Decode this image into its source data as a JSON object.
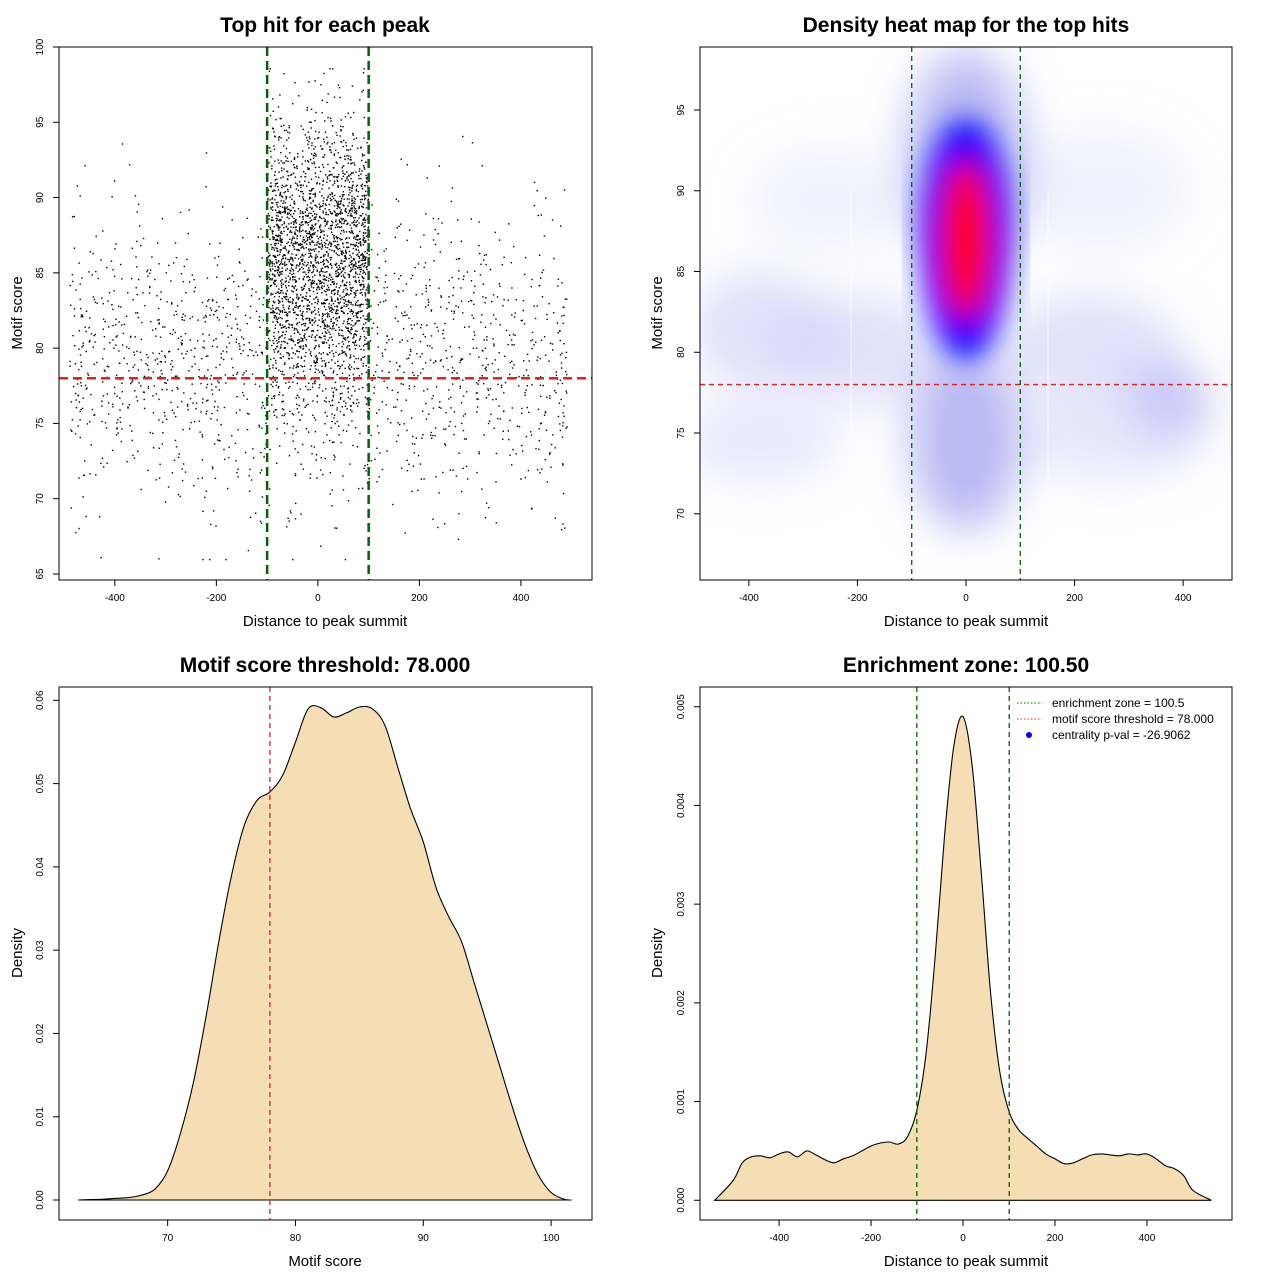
{
  "chart_data": [
    {
      "type": "scatter",
      "title": "Top hit for each peak",
      "xlabel": "Distance to peak summit",
      "ylabel": "Motif score",
      "xlim": [
        -510,
        540
      ],
      "ylim": [
        64.6,
        100
      ],
      "x_ticks": [
        -400,
        -200,
        0,
        200,
        400
      ],
      "y_ticks": [
        65,
        70,
        75,
        80,
        85,
        90,
        95,
        100
      ],
      "x_tick_labels": [
        "-400",
        "-200",
        "0",
        "200",
        "400"
      ],
      "y_tick_labels": [
        "65",
        "70",
        "75",
        "80",
        "85",
        "90",
        "95",
        "100"
      ],
      "vlines": [
        -100,
        100
      ],
      "hline": 78,
      "vline_color": "#006400",
      "hline_color": "#dd2222",
      "point_color": "#000000",
      "distribution": {
        "n_central": 2400,
        "central_x_range": [
          -100,
          100
        ],
        "central_score_mean": 86,
        "central_score_sd": 4.5,
        "n_background": 1700,
        "x_range": [
          -490,
          490
        ],
        "background_score_mean": 79.5,
        "background_score_sd": 5,
        "score_range": [
          66,
          98.6
        ]
      }
    },
    {
      "type": "heatmap",
      "title": "Density heat map for the top hits",
      "xlabel": "Distance to peak summit",
      "ylabel": "Motif score",
      "xlim": [
        -490,
        490
      ],
      "ylim": [
        65.9,
        98.9
      ],
      "x_ticks": [
        -400,
        -200,
        0,
        200,
        400
      ],
      "y_ticks": [
        70,
        75,
        80,
        85,
        90,
        95
      ],
      "x_tick_labels": [
        "-400",
        "-200",
        "0",
        "200",
        "400"
      ],
      "y_tick_labels": [
        "70",
        "75",
        "80",
        "85",
        "90",
        "95"
      ],
      "vlines": [
        -100,
        100
      ],
      "hline": 78,
      "color_scale": [
        "#ffffff",
        "#0000ff",
        "#ff0000"
      ],
      "peak": {
        "x": 0,
        "y": 87
      }
    },
    {
      "type": "area",
      "title": "Motif score threshold: 78.000",
      "xlabel": "Motif score",
      "ylabel": "Density",
      "xlim": [
        61.5,
        103.2
      ],
      "ylim": [
        -0.0024,
        0.0616
      ],
      "x_ticks": [
        70,
        80,
        90,
        100
      ],
      "y_ticks": [
        0,
        0.01,
        0.02,
        0.03,
        0.04,
        0.05,
        0.06
      ],
      "x_tick_labels": [
        "70",
        "80",
        "90",
        "100"
      ],
      "y_tick_labels": [
        "0.00",
        "0.01",
        "0.02",
        "0.03",
        "0.04",
        "0.05",
        "0.06"
      ],
      "vlines": [
        78
      ],
      "fill_color": "#f5deb3",
      "x": [
        63,
        64,
        65,
        66,
        67,
        68,
        69,
        70,
        71,
        72,
        73,
        74,
        75,
        76,
        77,
        78,
        79,
        80,
        81,
        82,
        83,
        84,
        85,
        86,
        87,
        88,
        89,
        90,
        91,
        92,
        93,
        94,
        95,
        96,
        97,
        98,
        99,
        100,
        101,
        101.6
      ],
      "y": [
        0,
        5e-05,
        0.0001,
        0.0002,
        0.0003,
        0.0006,
        0.0013,
        0.0035,
        0.008,
        0.014,
        0.022,
        0.031,
        0.039,
        0.045,
        0.048,
        0.049,
        0.051,
        0.055,
        0.059,
        0.0591,
        0.058,
        0.0585,
        0.0592,
        0.059,
        0.057,
        0.052,
        0.047,
        0.043,
        0.0375,
        0.034,
        0.031,
        0.026,
        0.021,
        0.016,
        0.011,
        0.0065,
        0.003,
        0.0009,
        0.0001,
        0
      ]
    },
    {
      "type": "area",
      "title": "Enrichment zone: 100.50",
      "xlabel": "Distance to peak summit",
      "ylabel": "Density",
      "xlim": [
        -572,
        585
      ],
      "ylim": [
        -0.0002,
        0.0052
      ],
      "x_ticks": [
        -400,
        -200,
        0,
        200,
        400
      ],
      "y_ticks": [
        0,
        0.001,
        0.002,
        0.003,
        0.004,
        0.005
      ],
      "x_tick_labels": [
        "-400",
        "-200",
        "0",
        "200",
        "400"
      ],
      "y_tick_labels": [
        "0.000",
        "0.001",
        "0.002",
        "0.003",
        "0.004",
        "0.005"
      ],
      "vlines": [
        -100.5,
        100.5
      ],
      "fill_color": "#f5deb3",
      "x": [
        -540,
        -500,
        -480,
        -460,
        -440,
        -420,
        -400,
        -380,
        -360,
        -340,
        -320,
        -300,
        -280,
        -260,
        -240,
        -220,
        -200,
        -180,
        -160,
        -140,
        -120,
        -100,
        -80,
        -60,
        -40,
        -20,
        0,
        20,
        40,
        60,
        80,
        100,
        120,
        140,
        160,
        180,
        200,
        220,
        240,
        260,
        280,
        300,
        320,
        340,
        360,
        380,
        400,
        420,
        440,
        460,
        480,
        500,
        540
      ],
      "y": [
        0,
        0.0002,
        0.00038,
        0.00044,
        0.00045,
        0.00043,
        0.00047,
        0.00049,
        0.00044,
        0.0005,
        0.00046,
        0.00041,
        0.00038,
        0.00042,
        0.00045,
        0.0005,
        0.00055,
        0.00058,
        0.00059,
        0.00057,
        0.00065,
        0.00092,
        0.0015,
        0.0025,
        0.0037,
        0.0046,
        0.0049,
        0.0044,
        0.0033,
        0.0021,
        0.0013,
        0.0009,
        0.00072,
        0.00063,
        0.00055,
        0.00047,
        0.00042,
        0.00037,
        0.00038,
        0.00042,
        0.00046,
        0.00047,
        0.00046,
        0.00045,
        0.00047,
        0.00046,
        0.00047,
        0.00042,
        0.00035,
        0.00032,
        0.00025,
        0.0001,
        0
      ],
      "legend": [
        {
          "label": "enrichment zone = 100.5",
          "style": "dotted",
          "color": "#006400"
        },
        {
          "label": "motif score threshold = 78.000",
          "style": "dotted",
          "color": "#dd2222"
        },
        {
          "label": "centrality p-val = -26.9062",
          "style": "point",
          "color": "#0000ff"
        }
      ],
      "legend_position": "top-right"
    }
  ]
}
